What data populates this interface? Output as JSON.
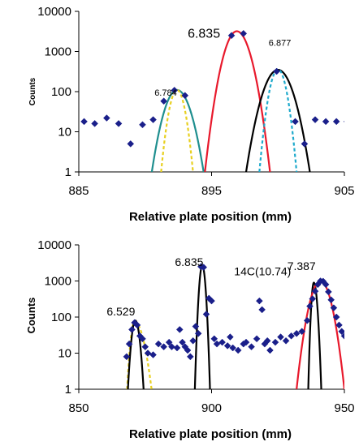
{
  "chart_data": [
    {
      "type": "scatter",
      "yscale": "log",
      "xlim": [
        885,
        905
      ],
      "ylim": [
        1,
        10000
      ],
      "grid": false,
      "xlabel": "Relative plate position (mm)",
      "ylabel": "Counts",
      "x_ticks": [
        "885",
        "895",
        "905"
      ],
      "y_ticks": [
        "1",
        "10",
        "100",
        "1000",
        "10000"
      ],
      "points": [
        [
          885.4,
          18
        ],
        [
          886.2,
          16
        ],
        [
          887.1,
          22
        ],
        [
          888.0,
          16
        ],
        [
          888.9,
          5
        ],
        [
          889.8,
          15
        ],
        [
          890.6,
          20
        ],
        [
          891.4,
          58
        ],
        [
          892.2,
          108
        ],
        [
          893.0,
          80
        ],
        [
          896.5,
          2500
        ],
        [
          897.4,
          2800
        ],
        [
          899.9,
          320
        ],
        [
          901.3,
          18
        ],
        [
          902.0,
          5
        ],
        [
          902.8,
          20
        ],
        [
          903.6,
          18
        ],
        [
          904.4,
          18
        ],
        [
          905.2,
          18
        ]
      ],
      "series": [
        {
          "color": "#1f8f8f",
          "peak_x": 892.4,
          "peak_y": 110,
          "x_range": [
            890.5,
            894.4
          ]
        },
        {
          "color": "#e8192c",
          "peak_x": 896.9,
          "peak_y": 3200,
          "x_range": [
            894.5,
            899.4
          ]
        },
        {
          "color": "#000000",
          "peak_x": 900.0,
          "peak_y": 350,
          "x_range": [
            897.6,
            902.4
          ]
        },
        {
          "color": "#1faacc",
          "peak_x": 900.0,
          "peak_y": 360,
          "x_range": [
            898.6,
            901.4
          ]
        },
        {
          "color": "#e8d020",
          "peak_x": 892.4,
          "peak_y": 110,
          "x_range": [
            891.2,
            893.6
          ]
        }
      ],
      "annotations": [
        {
          "text": "6.784",
          "x": 890.7,
          "y": 80
        },
        {
          "text": "6.835",
          "x": 893.2,
          "y": 2200
        },
        {
          "text": "6.877",
          "x": 899.3,
          "y": 1400
        }
      ]
    },
    {
      "type": "scatter",
      "yscale": "log",
      "xlim": [
        850,
        950
      ],
      "ylim": [
        1,
        10000
      ],
      "grid": false,
      "xlabel": "Relative plate position (mm)",
      "ylabel": "Counts",
      "x_ticks": [
        "850",
        "900",
        "950"
      ],
      "y_ticks": [
        "1",
        "10",
        "100",
        "1000",
        "10000"
      ],
      "points": [
        [
          868,
          8
        ],
        [
          869,
          18
        ],
        [
          870,
          45
        ],
        [
          871,
          70
        ],
        [
          872,
          60
        ],
        [
          873,
          30
        ],
        [
          874,
          25
        ],
        [
          875,
          15
        ],
        [
          876,
          10
        ],
        [
          878,
          9
        ],
        [
          880,
          18
        ],
        [
          882,
          15
        ],
        [
          884,
          20
        ],
        [
          885,
          15
        ],
        [
          887,
          14
        ],
        [
          888,
          45
        ],
        [
          889,
          20
        ],
        [
          890,
          15
        ],
        [
          891,
          12
        ],
        [
          892,
          8
        ],
        [
          893,
          22
        ],
        [
          894,
          55
        ],
        [
          895,
          35
        ],
        [
          896,
          2500
        ],
        [
          897,
          2400
        ],
        [
          898,
          120
        ],
        [
          899,
          330
        ],
        [
          900,
          280
        ],
        [
          901,
          25
        ],
        [
          902,
          18
        ],
        [
          904,
          20
        ],
        [
          906,
          16
        ],
        [
          907,
          28
        ],
        [
          908,
          14
        ],
        [
          910,
          12
        ],
        [
          912,
          18
        ],
        [
          913,
          20
        ],
        [
          915,
          15
        ],
        [
          917,
          25
        ],
        [
          918,
          280
        ],
        [
          919,
          160
        ],
        [
          920,
          18
        ],
        [
          921,
          22
        ],
        [
          922,
          12
        ],
        [
          924,
          20
        ],
        [
          926,
          28
        ],
        [
          928,
          22
        ],
        [
          930,
          30
        ],
        [
          932,
          35
        ],
        [
          934,
          40
        ],
        [
          936,
          80
        ],
        [
          937,
          200
        ],
        [
          938,
          320
        ],
        [
          939,
          520
        ],
        [
          940,
          800
        ],
        [
          941,
          1000
        ],
        [
          942,
          980
        ],
        [
          943,
          800
        ],
        [
          944,
          500
        ],
        [
          945,
          300
        ],
        [
          946,
          180
        ],
        [
          947,
          100
        ],
        [
          948,
          60
        ],
        [
          949,
          40
        ],
        [
          950,
          30
        ]
      ],
      "series": [
        {
          "color": "#e8d020",
          "peak_x": 871.0,
          "peak_y": 75,
          "x_range": [
            868.2,
            877.4
          ]
        },
        {
          "color": "#000000",
          "peak_x": 871.3,
          "peak_y": 80,
          "x_range": [
            868.5,
            874.4
          ]
        },
        {
          "color": "#000000",
          "peak_x": 896.5,
          "peak_y": 2700,
          "x_range": [
            893.7,
            899.4
          ]
        },
        {
          "color": "#000000",
          "peak_x": 938.5,
          "peak_y": 900,
          "x_range": [
            936.4,
            941.3
          ]
        },
        {
          "color": "#e8192c",
          "peak_x": 941.0,
          "peak_y": 1000,
          "x_range": [
            932.0,
            950.0
          ]
        }
      ],
      "annotations": [
        {
          "text": "6.529",
          "x": 860.5,
          "y": 110
        },
        {
          "text": "6.835",
          "x": 886.2,
          "y": 2600
        },
        {
          "text": "14C(10.74)",
          "x": 908.5,
          "y": 1450
        },
        {
          "text": "7.387",
          "x": 928.5,
          "y": 2000
        }
      ]
    }
  ]
}
